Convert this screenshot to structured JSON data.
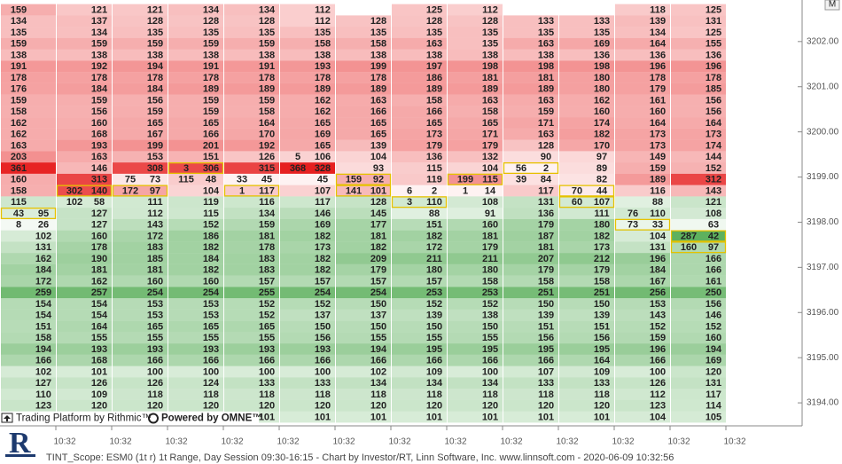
{
  "chart_data": {
    "type": "footprint",
    "x_labels": [
      "10:32",
      "10:32",
      "10:32",
      "10:32",
      "10:32",
      "10:32",
      "10:32",
      "10:32",
      "10:32",
      "10:32",
      "10:32",
      "10:32",
      "10:32"
    ],
    "rows": [
      [
        [
          159,
          null
        ],
        121,
        121,
        134,
        134,
        112,
        null,
        125,
        112,
        null,
        null,
        118,
        125
      ],
      [
        [
          134,
          null
        ],
        137,
        128,
        128,
        128,
        112,
        128,
        128,
        128,
        133,
        133,
        139,
        131
      ],
      [
        [
          135,
          null
        ],
        134,
        135,
        135,
        135,
        135,
        135,
        135,
        135,
        135,
        135,
        134,
        125
      ],
      [
        [
          159,
          null
        ],
        159,
        159,
        159,
        159,
        158,
        158,
        163,
        135,
        163,
        169,
        164,
        155
      ],
      [
        [
          138,
          null
        ],
        138,
        138,
        138,
        138,
        138,
        138,
        138,
        138,
        138,
        136,
        136,
        136
      ],
      [
        [
          191,
          null
        ],
        192,
        194,
        191,
        191,
        193,
        199,
        197,
        198,
        198,
        198,
        196,
        196
      ],
      [
        [
          178,
          null
        ],
        178,
        178,
        178,
        178,
        178,
        178,
        186,
        181,
        181,
        180,
        178,
        178
      ],
      [
        [
          176,
          null
        ],
        184,
        184,
        189,
        189,
        189,
        189,
        189,
        189,
        189,
        180,
        179,
        185
      ],
      [
        [
          159,
          null
        ],
        159,
        156,
        159,
        159,
        162,
        163,
        158,
        163,
        163,
        162,
        161,
        156
      ],
      [
        [
          158,
          null
        ],
        156,
        159,
        159,
        158,
        162,
        166,
        166,
        158,
        159,
        160,
        160,
        156
      ],
      [
        [
          162,
          null
        ],
        160,
        165,
        165,
        164,
        165,
        165,
        165,
        165,
        171,
        174,
        164,
        164
      ],
      [
        [
          162,
          null
        ],
        168,
        167,
        166,
        170,
        169,
        165,
        173,
        171,
        163,
        182,
        173,
        173
      ],
      [
        [
          163,
          null
        ],
        193,
        199,
        201,
        192,
        165,
        139,
        179,
        179,
        128,
        170,
        173,
        174
      ],
      [
        [
          203,
          null
        ],
        163,
        153,
        151,
        126,
        [
          5,
          106
        ],
        104,
        136,
        132,
        90,
        97,
        149,
        144
      ],
      [
        [
          361,
          null
        ],
        146,
        308,
        [
          3,
          306
        ],
        315,
        [
          368,
          328
        ],
        93,
        115,
        104,
        [
          56,
          2
        ],
        89,
        159,
        152
      ],
      [
        [
          160,
          null
        ],
        313,
        [
          75,
          73
        ],
        [
          115,
          48
        ],
        [
          33,
          45
        ],
        45,
        [
          159,
          92
        ],
        119,
        [
          199,
          115
        ],
        [
          39,
          84
        ],
        82,
        189,
        312
      ],
      [
        [
          158,
          null
        ],
        [
          302,
          140
        ],
        [
          172,
          97
        ],
        104,
        [
          1,
          117
        ],
        107,
        [
          141,
          101
        ],
        [
          6,
          2
        ],
        [
          1,
          14
        ],
        117,
        [
          70,
          44
        ],
        116,
        143
      ],
      [
        [
          115,
          null
        ],
        [
          102,
          58
        ],
        111,
        119,
        116,
        117,
        128,
        [
          3,
          110
        ],
        108,
        131,
        [
          60,
          107
        ],
        88,
        121
      ],
      [
        [
          43,
          95
        ],
        127,
        112,
        115,
        134,
        146,
        145,
        88,
        91,
        136,
        111,
        [
          76,
          110
        ],
        108
      ],
      [
        [
          8,
          26
        ],
        127,
        143,
        152,
        159,
        169,
        177,
        151,
        160,
        179,
        180,
        [
          73,
          33
        ],
        63
      ],
      [
        102,
        160,
        172,
        186,
        181,
        182,
        181,
        182,
        181,
        187,
        182,
        104,
        [
          287,
          42
        ]
      ],
      [
        131,
        178,
        183,
        182,
        178,
        173,
        182,
        172,
        179,
        181,
        173,
        131,
        [
          160,
          97
        ]
      ],
      [
        162,
        190,
        185,
        184,
        183,
        182,
        209,
        211,
        211,
        207,
        212,
        196,
        166
      ],
      [
        184,
        181,
        181,
        182,
        183,
        182,
        179,
        180,
        180,
        179,
        179,
        184,
        166
      ],
      [
        172,
        162,
        160,
        160,
        157,
        157,
        157,
        157,
        158,
        158,
        158,
        167,
        161
      ],
      [
        259,
        257,
        254,
        254,
        255,
        254,
        254,
        253,
        253,
        251,
        251,
        256,
        250
      ],
      [
        154,
        154,
        153,
        153,
        152,
        152,
        150,
        152,
        152,
        150,
        150,
        153,
        156
      ],
      [
        154,
        154,
        153,
        153,
        152,
        137,
        137,
        139,
        138,
        139,
        139,
        143,
        146
      ],
      [
        151,
        164,
        165,
        165,
        165,
        150,
        150,
        150,
        150,
        151,
        151,
        152,
        152
      ],
      [
        158,
        155,
        155,
        155,
        155,
        156,
        155,
        155,
        155,
        156,
        156,
        159,
        160
      ],
      [
        194,
        193,
        193,
        193,
        193,
        193,
        194,
        195,
        195,
        195,
        195,
        196,
        194
      ],
      [
        166,
        168,
        166,
        166,
        166,
        166,
        166,
        166,
        166,
        166,
        164,
        166,
        169
      ],
      [
        102,
        101,
        100,
        100,
        100,
        100,
        102,
        109,
        100,
        107,
        109,
        100,
        120
      ],
      [
        127,
        126,
        126,
        124,
        133,
        133,
        134,
        134,
        134,
        133,
        133,
        126,
        131
      ],
      [
        110,
        109,
        118,
        118,
        118,
        118,
        118,
        118,
        118,
        118,
        118,
        112,
        117
      ],
      [
        123,
        120,
        120,
        120,
        120,
        120,
        120,
        120,
        120,
        120,
        120,
        123,
        114
      ],
      [
        null,
        null,
        null,
        null,
        101,
        101,
        101,
        101,
        101,
        101,
        101,
        104,
        105
      ]
    ],
    "ylim": [
      3193.53,
      3202.92
    ],
    "yticks": [
      {
        "value": 3202,
        "label": "3202.00"
      },
      {
        "value": 3201,
        "label": "3201.00"
      },
      {
        "value": 3200,
        "label": "3200.00"
      },
      {
        "value": 3199,
        "label": "3199.00"
      },
      {
        "value": 3198,
        "label": "3198.00"
      },
      {
        "value": 3197,
        "label": "3197.00"
      },
      {
        "value": 3196,
        "label": "3196.00"
      },
      {
        "value": 3195,
        "label": "3195.00"
      },
      {
        "value": 3194,
        "label": "3194.00"
      }
    ],
    "up_color": "#e61e1e",
    "down_color": "#3ca03c",
    "box_color": "#e6c200"
  },
  "watermark": {
    "left": "Trading Platform by Rithmic™",
    "right": "Powered by OMNE™"
  },
  "corner_button": "M",
  "status_bar": "TINT_Scope: ESM0 (1t r) 1t Range, Day Session 09:30-16:15 - Chart by Investor/RT, Linn Software, Inc. www.linnsoft.com - 2020-06-09 10:32:56"
}
